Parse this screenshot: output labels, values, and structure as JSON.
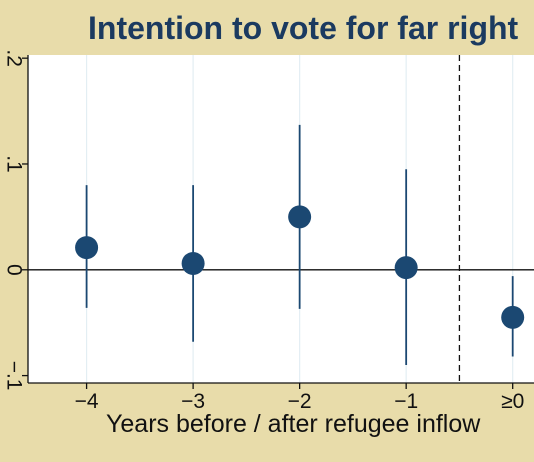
{
  "chart_data": {
    "type": "scatter",
    "title": "Intention to vote for far right",
    "xlabel": "Years before / after refugee inflow",
    "ylabel": "",
    "categories": [
      "−4",
      "−3",
      "−2",
      "−1",
      "≥0"
    ],
    "x": [
      -4,
      -3,
      -2,
      -1,
      0
    ],
    "y": [
      0.021,
      0.006,
      0.05,
      0.002,
      -0.045
    ],
    "ci_low": [
      -0.036,
      -0.068,
      -0.037,
      -0.09,
      -0.082
    ],
    "ci_high": [
      0.08,
      0.08,
      0.137,
      0.095,
      -0.006
    ],
    "yticks": [
      -0.1,
      0,
      0.1,
      0.2
    ],
    "ytick_labels": [
      "−.1",
      "0",
      ".1",
      ".2"
    ],
    "ylim": [
      -0.107,
      0.203
    ],
    "xlim": [
      -4.55,
      0.2
    ],
    "reference_lines": {
      "horizontal_y": 0,
      "vertical_dashed_x": -0.5
    },
    "grid": "vertical",
    "colors": {
      "marker": "#1b4872",
      "ci": "#1b4872",
      "title": "#1b3a60",
      "plot_bg": "#ffffff",
      "frame_bg": "#e8dcaa",
      "grid": "#e3eef3"
    }
  }
}
